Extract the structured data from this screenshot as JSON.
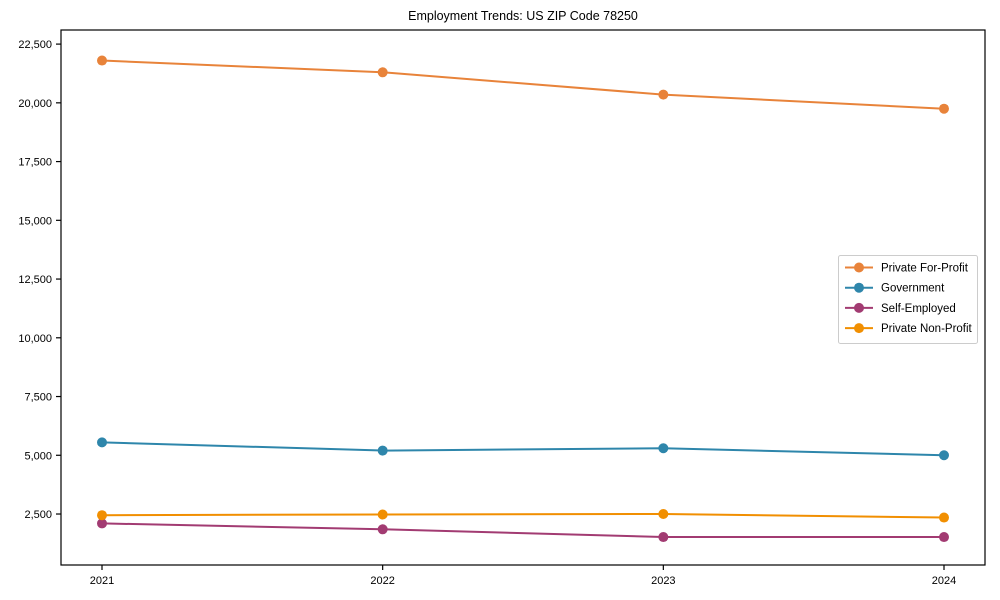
{
  "figure": {
    "background_color": "#ffffff",
    "frame_color": "#000000",
    "text_color": "#000000",
    "legend_border_color": "#cccccc",
    "legend_background_color": "#ffffff"
  },
  "chart_data": {
    "type": "line",
    "title": "Employment Trends: US ZIP Code 78250",
    "categories": [
      "2021",
      "2022",
      "2023",
      "2024"
    ],
    "series": [
      {
        "name": "Private For-Profit",
        "color": "#E8833A",
        "values": [
          21800,
          21300,
          20350,
          19750
        ]
      },
      {
        "name": "Government",
        "color": "#2E86AB",
        "values": [
          5550,
          5200,
          5300,
          5000
        ]
      },
      {
        "name": "Self-Employed",
        "color": "#A23B72",
        "values": [
          2100,
          1850,
          1520,
          1520
        ]
      },
      {
        "name": "Private Non-Profit",
        "color": "#F18F01",
        "values": [
          2450,
          2480,
          2500,
          2350
        ]
      }
    ],
    "xlabel": "",
    "ylabel": "",
    "ylim": [
      330,
      23100
    ],
    "yticks": [
      2500,
      5000,
      7500,
      10000,
      12500,
      15000,
      17500,
      20000,
      22500
    ],
    "ytick_labels": [
      "2,500",
      "5,000",
      "7,500",
      "10,000",
      "12,500",
      "15,000",
      "17,500",
      "20,000",
      "22,500"
    ],
    "grid": false,
    "marker": "circle",
    "legend": {
      "position": "right-center",
      "entries": [
        "Private For-Profit",
        "Government",
        "Self-Employed",
        "Private Non-Profit"
      ]
    }
  }
}
